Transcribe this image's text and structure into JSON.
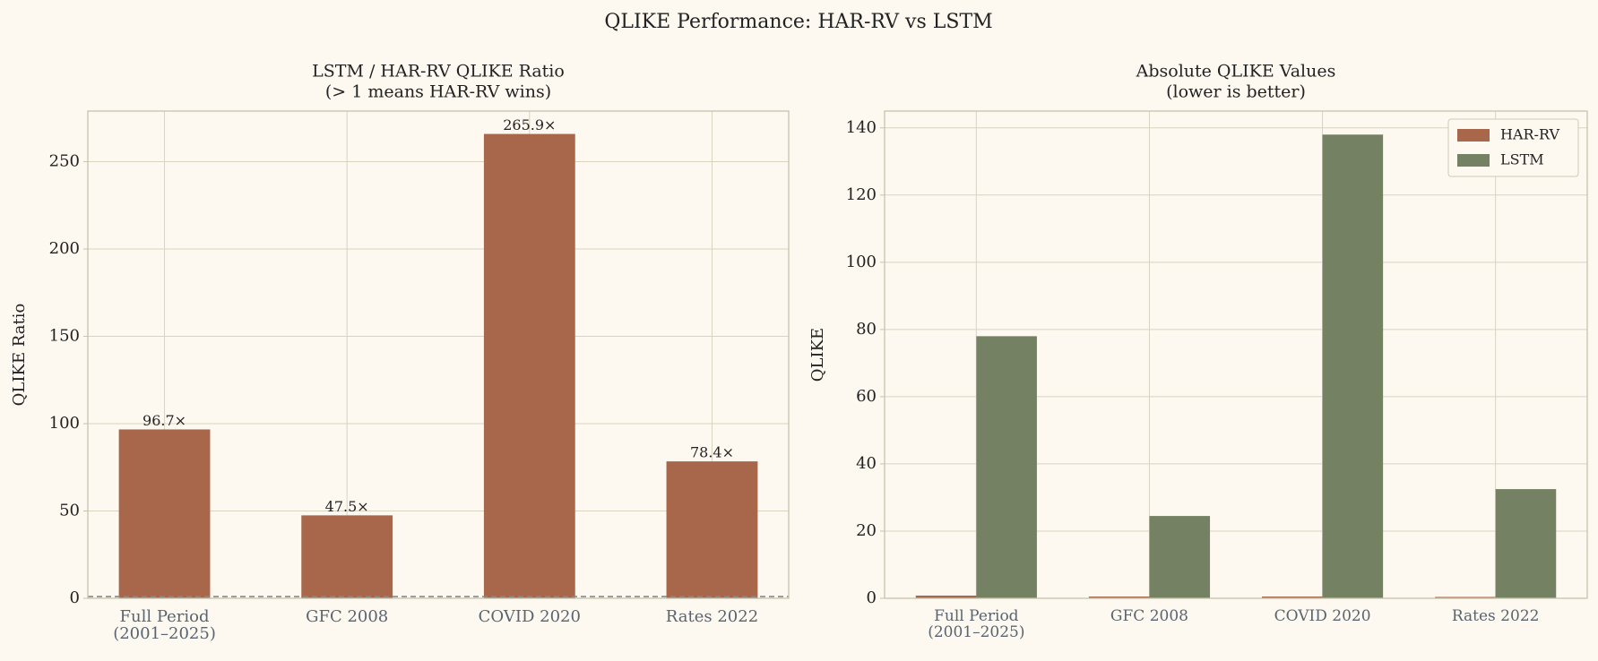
{
  "title": "QLIKE Performance: HAR-RV vs LSTM",
  "chart_data": [
    {
      "type": "bar",
      "title": "LSTM / HAR-RV QLIKE Ratio\n(> 1 means HAR-RV wins)",
      "ylabel": "QLIKE Ratio",
      "categories": [
        "Full Period\n(2001–2025)",
        "GFC 2008",
        "COVID 2020",
        "Rates 2022"
      ],
      "values": [
        96.7,
        47.5,
        265.9,
        78.4
      ],
      "value_labels": [
        "96.7×",
        "47.5×",
        "265.9×",
        "78.4×"
      ],
      "color": "#a8674a",
      "ylim": [
        0,
        279
      ],
      "yticks": [
        0,
        50,
        100,
        150,
        200,
        250
      ],
      "grid": true,
      "reference_line": 1
    },
    {
      "type": "grouped_bar",
      "title": "Absolute QLIKE Values\n(lower is better)",
      "ylabel": "QLIKE",
      "categories": [
        "Full Period\n(2001–2025)",
        "GFC 2008",
        "COVID 2020",
        "Rates 2022"
      ],
      "series": [
        {
          "name": "HAR-RV",
          "color": "#a8674a",
          "values": [
            0.81,
            0.52,
            0.52,
            0.41
          ]
        },
        {
          "name": "LSTM",
          "color": "#748263",
          "values": [
            78,
            24.5,
            138,
            32.5
          ]
        }
      ],
      "ylim": [
        0,
        145
      ],
      "yticks": [
        0,
        20,
        40,
        60,
        80,
        100,
        120,
        140
      ],
      "grid": true,
      "legend": "upper right"
    }
  ]
}
